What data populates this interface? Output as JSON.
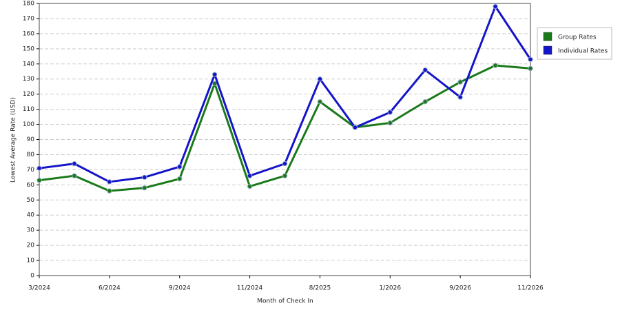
{
  "chart_data": {
    "type": "line",
    "x_label": "Month of Check In",
    "y_label": "Lowest Average Rate (USD)",
    "categories": [
      "3/2024",
      null,
      "6/2024",
      null,
      "9/2024",
      null,
      "11/2024",
      null,
      "8/2025",
      null,
      "1/2026",
      null,
      "9/2026",
      null,
      "11/2026"
    ],
    "series": [
      {
        "name": "Group Rates",
        "color": "#1a7a1a",
        "values": [
          63,
          66,
          56,
          58,
          64,
          127,
          59,
          66,
          115,
          98,
          101,
          115,
          128,
          139,
          137
        ]
      },
      {
        "name": "Individual Rates",
        "color": "#1414c8",
        "values": [
          71,
          74,
          62,
          65,
          72,
          133,
          66,
          74,
          130,
          98,
          108,
          136,
          118,
          178,
          143
        ]
      }
    ],
    "ylim": [
      0,
      180
    ],
    "yticks": [
      0,
      10,
      20,
      30,
      40,
      50,
      60,
      70,
      80,
      90,
      100,
      110,
      120,
      130,
      140,
      150,
      160,
      170,
      180
    ],
    "grid": true,
    "legend_position": "right"
  }
}
